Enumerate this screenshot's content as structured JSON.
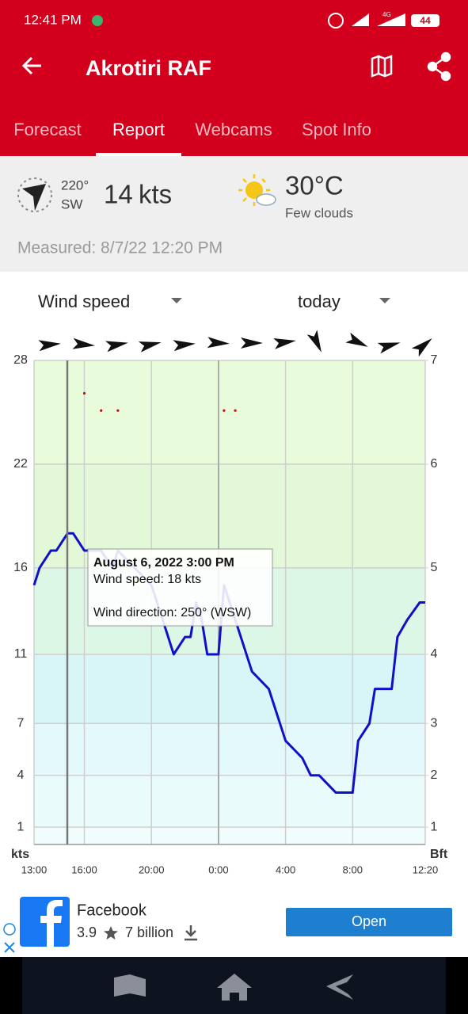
{
  "status_bar": {
    "time": "12:41 PM",
    "network": "4G",
    "battery": "44"
  },
  "header": {
    "title": "Akrotiri RAF"
  },
  "tabs": [
    "Forecast",
    "Report",
    "Webcams",
    "Spot Info"
  ],
  "current": {
    "direction_deg": "220°",
    "direction": "SW",
    "speed": "14",
    "speed_unit": "kts",
    "temperature": "30°C",
    "condition": "Few clouds",
    "measured": "Measured: 8/7/22 12:20 PM"
  },
  "selectors": {
    "metric": "Wind speed",
    "period": "today"
  },
  "chart_data": {
    "type": "line",
    "y_label": "kts",
    "y2_label": "Bft",
    "x": [
      0,
      0.33,
      1,
      1.33,
      2,
      2.33,
      3,
      4,
      4.67,
      5,
      6,
      7,
      7.67,
      8.33,
      9,
      9.33,
      9.67,
      10,
      10.33,
      11,
      11.33,
      12,
      13,
      14,
      15,
      16,
      16.5,
      17,
      18,
      19,
      19.33,
      20,
      20.33,
      21.33,
      21.67,
      22.26,
      23,
      23.33
    ],
    "series": [
      {
        "color": "#1010c8",
        "values": [
          15,
          16,
          17,
          17,
          18,
          18,
          17,
          17,
          16,
          17,
          16,
          15,
          13,
          11,
          12,
          12,
          14,
          13,
          11,
          11,
          15,
          13,
          10,
          9,
          6,
          5,
          4,
          4,
          3,
          3,
          6,
          7,
          9,
          9,
          12,
          13,
          14,
          14
        ]
      }
    ],
    "dots": {
      "color": "#e00000",
      "x": [
        3,
        4,
        5,
        11.33,
        12
      ],
      "values": [
        26.1,
        25.1,
        25.1,
        25.1,
        25.1
      ]
    },
    "xlim": [
      0,
      23.33
    ],
    "xticks": [
      {
        "value": 0,
        "label": "13:00"
      },
      {
        "value": 3,
        "label": "16:00"
      },
      {
        "value": 7,
        "label": "20:00"
      },
      {
        "value": 11,
        "label": "0:00"
      },
      {
        "value": 15,
        "label": "4:00"
      },
      {
        "value": 19,
        "label": "8:00"
      },
      {
        "value": 23.33,
        "label": "12:20"
      }
    ],
    "ylim": [
      0,
      28
    ],
    "yticks": [
      28,
      22,
      16,
      11,
      7,
      4,
      1
    ],
    "bft_ticks": [
      {
        "value": 28,
        "label": "7"
      },
      {
        "value": 22,
        "label": "6"
      },
      {
        "value": 16,
        "label": "5"
      },
      {
        "value": 11,
        "label": "4"
      },
      {
        "value": 7,
        "label": "3"
      },
      {
        "value": 4,
        "label": "2"
      },
      {
        "value": 1,
        "label": "1"
      }
    ],
    "band_colors": [
      "#e8fcdb",
      "#e2f8d6",
      "#dcf7e6",
      "#d8f5f8",
      "#e3f9fb",
      "#eafbfc",
      "#f1fdfd"
    ],
    "grid": true,
    "tooltip": {
      "title": "August 6, 2022 3:00 PM",
      "lines": [
        "Wind speed: 18 kts",
        "Wind direction: 250° (WSW)"
      ]
    }
  },
  "ad": {
    "name": "Facebook",
    "rating": "3.9",
    "downloads": "7 billion",
    "button": "Open"
  }
}
